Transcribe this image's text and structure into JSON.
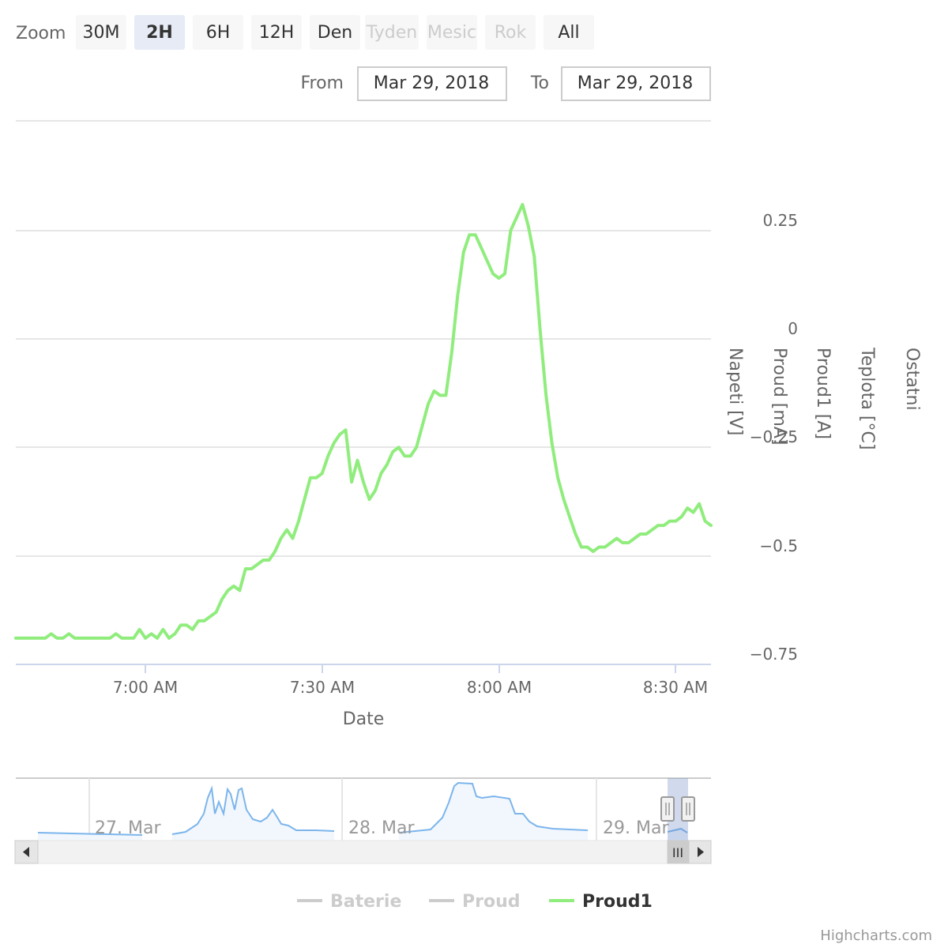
{
  "range_selector": {
    "zoom_label": "Zoom",
    "buttons": [
      {
        "label": "30M",
        "state": "normal"
      },
      {
        "label": "2H",
        "state": "selected"
      },
      {
        "label": "6H",
        "state": "normal"
      },
      {
        "label": "12H",
        "state": "normal"
      },
      {
        "label": "Den",
        "state": "normal"
      },
      {
        "label": "Tyden",
        "state": "disabled"
      },
      {
        "label": "Mesic",
        "state": "disabled"
      },
      {
        "label": "Rok",
        "state": "disabled"
      },
      {
        "label": "All",
        "state": "normal"
      }
    ],
    "from_label": "From",
    "from_value": "Mar 29, 2018",
    "to_label": "To",
    "to_value": "Mar 29, 2018"
  },
  "colors": {
    "series_line": "#90ed7d",
    "navigator_line": "#7cb5ec",
    "grid": "#e6e6e6",
    "axis_text": "#666666",
    "selected_button_bg": "#e6ebf5",
    "button_bg": "#f7f7f7",
    "disabled_text": "#cccccc",
    "hidden_legend": "#cccccc"
  },
  "chart_data": {
    "type": "line",
    "xlabel": "Date",
    "x_tick_labels": [
      "7:00 AM",
      "7:30 AM",
      "8:00 AM",
      "8:30 AM"
    ],
    "x_range": [
      "06:38",
      "08:36"
    ],
    "ylim": [
      -0.8,
      0.5
    ],
    "y_tick_labels": [
      "0.25",
      "0",
      "−0.25",
      "−0.5",
      "−0.75"
    ],
    "y_tick_values": [
      0.25,
      0,
      -0.25,
      -0.5,
      -0.75
    ],
    "y_axis_titles": [
      "Napeti [V]",
      "Proud [mA]",
      "Proud1 [A]",
      "Teplota [°C]",
      "Ostatni"
    ],
    "grid": true,
    "legend_position": "bottom-center",
    "legend": [
      {
        "name": "Baterie",
        "visible": false
      },
      {
        "name": "Proud",
        "visible": false
      },
      {
        "name": "Proud1",
        "visible": true
      }
    ],
    "series": [
      {
        "name": "Proud1",
        "x": [
          "06:38",
          "06:43",
          "06:44",
          "06:45",
          "06:46",
          "06:47",
          "06:48",
          "06:49",
          "06:50",
          "06:52",
          "06:54",
          "06:55",
          "06:56",
          "06:57",
          "06:58",
          "06:59",
          "07:00",
          "07:01",
          "07:02",
          "07:03",
          "07:04",
          "07:05",
          "07:06",
          "07:07",
          "07:08",
          "07:09",
          "07:10",
          "07:11",
          "07:12",
          "07:13",
          "07:14",
          "07:15",
          "07:16",
          "07:17",
          "07:18",
          "07:19",
          "07:20",
          "07:21",
          "07:22",
          "07:23",
          "07:24",
          "07:25",
          "07:26",
          "07:27",
          "07:28",
          "07:29",
          "07:30",
          "07:31",
          "07:32",
          "07:33",
          "07:34",
          "07:35",
          "07:36",
          "07:37",
          "07:38",
          "07:39",
          "07:40",
          "07:41",
          "07:42",
          "07:43",
          "07:44",
          "07:45",
          "07:46",
          "07:47",
          "07:48",
          "07:49",
          "07:50",
          "07:51",
          "07:52",
          "07:53",
          "07:54",
          "07:55",
          "07:56",
          "07:57",
          "07:58",
          "07:59",
          "08:00",
          "08:01",
          "08:02",
          "08:03",
          "08:04",
          "08:05",
          "08:06",
          "08:07",
          "08:08",
          "08:09",
          "08:10",
          "08:11",
          "08:12",
          "08:13",
          "08:14",
          "08:15",
          "08:16",
          "08:17",
          "08:18",
          "08:19",
          "08:20",
          "08:21",
          "08:22",
          "08:23",
          "08:24",
          "08:25",
          "08:26",
          "08:27",
          "08:28",
          "08:29",
          "08:30",
          "08:31",
          "08:32",
          "08:33",
          "08:34",
          "08:35",
          "08:36"
        ],
        "values": [
          -0.69,
          -0.69,
          -0.68,
          -0.69,
          -0.69,
          -0.68,
          -0.69,
          -0.69,
          -0.69,
          -0.69,
          -0.69,
          -0.68,
          -0.69,
          -0.69,
          -0.69,
          -0.67,
          -0.69,
          -0.68,
          -0.69,
          -0.67,
          -0.69,
          -0.68,
          -0.66,
          -0.66,
          -0.67,
          -0.65,
          -0.65,
          -0.64,
          -0.63,
          -0.6,
          -0.58,
          -0.57,
          -0.58,
          -0.53,
          -0.53,
          -0.52,
          -0.51,
          -0.51,
          -0.49,
          -0.46,
          -0.44,
          -0.46,
          -0.42,
          -0.37,
          -0.32,
          -0.32,
          -0.31,
          -0.27,
          -0.24,
          -0.22,
          -0.21,
          -0.33,
          -0.28,
          -0.33,
          -0.37,
          -0.35,
          -0.31,
          -0.29,
          -0.26,
          -0.25,
          -0.27,
          -0.27,
          -0.25,
          -0.2,
          -0.15,
          -0.12,
          -0.13,
          -0.13,
          -0.03,
          0.1,
          0.2,
          0.24,
          0.24,
          0.21,
          0.18,
          0.15,
          0.14,
          0.15,
          0.25,
          0.28,
          0.31,
          0.26,
          0.19,
          0.02,
          -0.13,
          -0.24,
          -0.32,
          -0.37,
          -0.41,
          -0.45,
          -0.48,
          -0.48,
          -0.49,
          -0.48,
          -0.48,
          -0.47,
          -0.46,
          -0.47,
          -0.47,
          -0.46,
          -0.45,
          -0.45,
          -0.44,
          -0.43,
          -0.43,
          -0.42,
          -0.42,
          -0.41,
          -0.39,
          -0.4,
          -0.38,
          -0.42,
          -0.43
        ]
      }
    ],
    "navigator": {
      "labels": [
        "27. Mar",
        "28. Mar",
        "29. Mar"
      ],
      "scrollbar_grip": "III"
    }
  },
  "credits": "Highcharts.com"
}
